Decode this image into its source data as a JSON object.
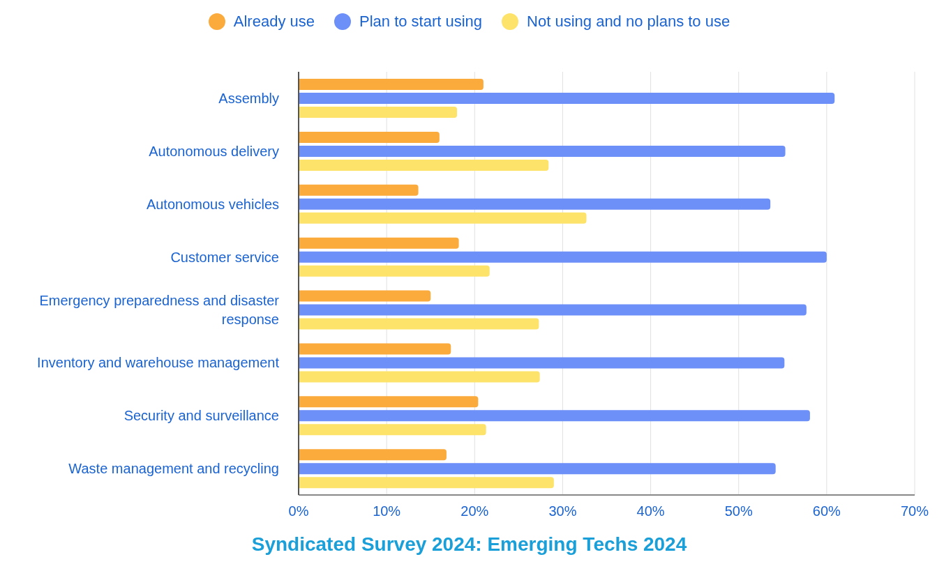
{
  "chart_data": {
    "type": "bar",
    "orientation": "horizontal",
    "title": "Syndicated Survey 2024: Emerging Techs 2024",
    "categories": [
      "Assembly",
      "Autonomous delivery",
      "Autonomous vehicles",
      "Customer service",
      "Emergency preparedness and disaster response",
      "Inventory and warehouse management",
      "Security and surveillance",
      "Waste management and recycling"
    ],
    "series": [
      {
        "name": "Already use",
        "color": "#fbaa3c",
        "values": [
          21.0,
          16.0,
          13.6,
          18.2,
          15.0,
          17.3,
          20.4,
          16.8
        ]
      },
      {
        "name": "Plan to start using",
        "color": "#6c8ff8",
        "values": [
          60.9,
          55.3,
          53.6,
          60.0,
          57.7,
          55.2,
          58.1,
          54.2
        ]
      },
      {
        "name": "Not using and no plans to use",
        "color": "#fde36a",
        "values": [
          18.0,
          28.4,
          32.7,
          21.7,
          27.3,
          27.4,
          21.3,
          29.0
        ]
      }
    ],
    "xlim": [
      0,
      70
    ],
    "xticks": [
      {
        "value": 0,
        "label": "0%"
      },
      {
        "value": 10,
        "label": "10%"
      },
      {
        "value": 20,
        "label": "20%"
      },
      {
        "value": 30,
        "label": "30%"
      },
      {
        "value": 40,
        "label": "40%"
      },
      {
        "value": 50,
        "label": "50%"
      },
      {
        "value": 60,
        "label": "60%"
      },
      {
        "value": 70,
        "label": "70%"
      }
    ],
    "grid": "x",
    "legend": "top"
  }
}
